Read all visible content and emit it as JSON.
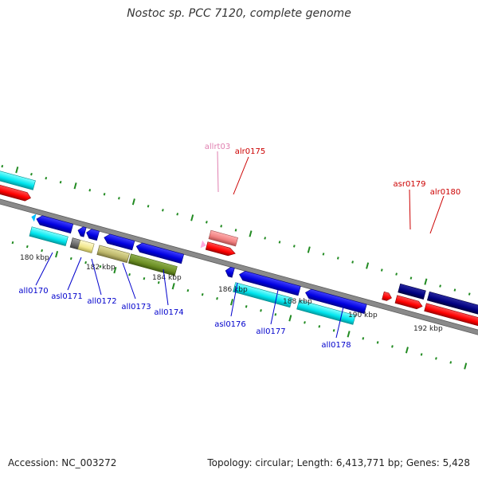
{
  "title": "Nostoc sp. PCC 7120, complete genome",
  "accession": "Accession: NC_003272",
  "summary": "Topology: circular; Length: 6,413,771 bp; Genes: 5,428",
  "tick_labels": [
    "180 kbp",
    "182 kbp",
    "184 kbp",
    "186 kbp",
    "188 kbp",
    "190 kbp",
    "192 kbp"
  ],
  "genes_reverse": [
    {
      "name": "all0170",
      "color": "#0000cc"
    },
    {
      "name": "asl0171",
      "color": "#0000cc"
    },
    {
      "name": "all0172",
      "color": "#0000cc"
    },
    {
      "name": "all0173",
      "color": "#0000cc"
    },
    {
      "name": "all0174",
      "color": "#0000cc"
    },
    {
      "name": "asl0176",
      "color": "#0000cc"
    },
    {
      "name": "all0177",
      "color": "#0000cc"
    },
    {
      "name": "all0178",
      "color": "#0000cc"
    }
  ],
  "genes_forward": [
    {
      "name": "allrt03",
      "color": "#e080b0"
    },
    {
      "name": "alr0175",
      "color": "#cc0000"
    },
    {
      "name": "asr0179",
      "color": "#cc0000"
    },
    {
      "name": "alr0180",
      "color": "#cc0000"
    }
  ],
  "colors": {
    "backbone": "#7a7a7a",
    "tick": "#228b22",
    "reverse_gene": "#0000e0",
    "forward_gene": "#ff0000",
    "cyan_bar": "#00e5ee",
    "navy_gene": "#000080",
    "salmon_gene": "#f08080",
    "khaki_bar": "#bdb76b",
    "olive_bar": "#6b8e23",
    "grey_gene": "#696969",
    "lemon_bar": "#f0e68c"
  }
}
